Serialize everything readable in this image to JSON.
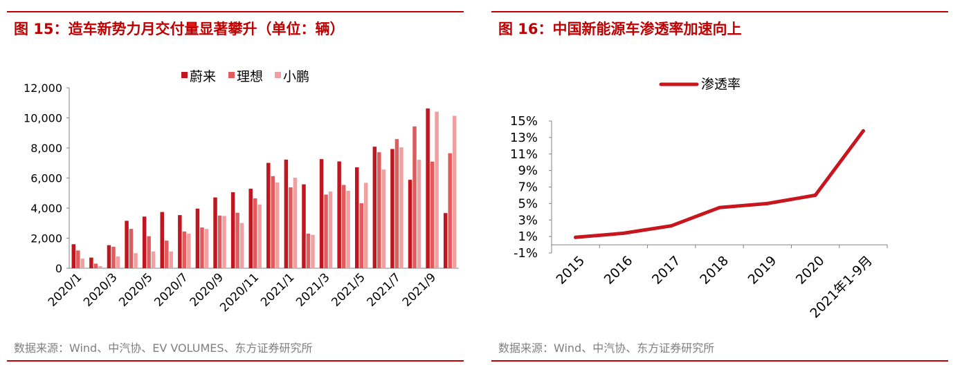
{
  "left_panel": {
    "title": "图 15：造车新势力月交付量显著攀升（单位：辆）",
    "source": "数据来源：Wind、中汽协、EV VOLUMES、东方证券研究所"
  },
  "right_panel": {
    "title": "图 16：中国新能源车渗透率加速向上",
    "source": "数据来源：Wind、中汽协、东方证券研究所"
  },
  "colors": {
    "accent": "#c00000",
    "nio": "#c0161f",
    "li": "#e05c5c",
    "xpeng": "#f0a0a0",
    "line": "#c8161e"
  },
  "chart_data": [
    {
      "type": "bar",
      "categories": [
        "2020/1",
        "2020/2",
        "2020/3",
        "2020/4",
        "2020/5",
        "2020/6",
        "2020/7",
        "2020/8",
        "2020/9",
        "2020/10",
        "2020/11",
        "2020/12",
        "2021/1",
        "2021/2",
        "2021/3",
        "2021/4",
        "2021/5",
        "2021/6",
        "2021/7",
        "2021/8",
        "2021/9",
        "2021/10"
      ],
      "tick_labels": [
        "2020/1",
        "2020/3",
        "2020/5",
        "2020/7",
        "2020/9",
        "2020/11",
        "2021/1",
        "2021/3",
        "2021/5",
        "2021/7",
        "2021/9"
      ],
      "tick_every": 2,
      "series": [
        {
          "name": "蔚来",
          "values": [
            1598,
            707,
            1533,
            3155,
            3436,
            3740,
            3533,
            3965,
            4708,
            5055,
            5291,
            7007,
            7225,
            5578,
            7257,
            7102,
            6711,
            8083,
            7931,
            5880,
            10628,
            3667
          ]
        },
        {
          "name": "理想",
          "values": [
            1180,
            304,
            1430,
            2617,
            2131,
            1834,
            2445,
            2711,
            3504,
            3692,
            4646,
            6126,
            5379,
            2300,
            4900,
            5539,
            4323,
            7713,
            8589,
            9433,
            7094,
            7649
          ]
        },
        {
          "name": "小鹏",
          "values": [
            640,
            140,
            780,
            1000,
            1120,
            1120,
            2300,
            2610,
            3480,
            3010,
            4240,
            5700,
            6020,
            2220,
            5100,
            5147,
            5686,
            6565,
            8040,
            7214,
            10412,
            10138
          ]
        }
      ],
      "yticks": [
        "0",
        "2,000",
        "4,000",
        "6,000",
        "8,000",
        "10,000",
        "12,000"
      ],
      "ylim": [
        0,
        12000
      ],
      "legend": "top-center"
    },
    {
      "type": "line",
      "categories": [
        "2015",
        "2016",
        "2017",
        "2018",
        "2019",
        "2020",
        "2021年1-9月"
      ],
      "series": [
        {
          "name": "渗透率",
          "values": [
            0.9,
            1.4,
            2.3,
            4.5,
            5.0,
            6.0,
            13.8
          ]
        }
      ],
      "yticks": [
        "-1%",
        "1%",
        "3%",
        "5%",
        "7%",
        "9%",
        "11%",
        "13%",
        "15%"
      ],
      "ylim": [
        -1,
        15
      ],
      "legend": "top-center"
    }
  ]
}
